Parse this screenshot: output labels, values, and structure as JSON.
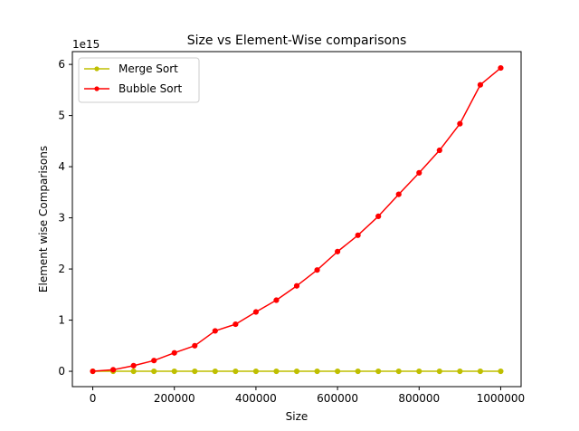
{
  "chart_data": {
    "type": "line",
    "title": "Size vs Element-Wise comparisons",
    "xlabel": "Size",
    "ylabel": "Element wise Comparisons",
    "y_offset_label": "1e15",
    "y_scale_factor": 1000000000000000.0,
    "xlim": [
      -50000,
      1050000
    ],
    "ylim": [
      -0.3,
      6.25
    ],
    "x_ticks": [
      0,
      200000,
      400000,
      600000,
      800000,
      1000000
    ],
    "x_tick_labels": [
      "0",
      "200000",
      "400000",
      "600000",
      "800000",
      "1000000"
    ],
    "y_ticks": [
      0,
      1,
      2,
      3,
      4,
      5,
      6
    ],
    "y_tick_labels": [
      "0",
      "1",
      "2",
      "3",
      "4",
      "5",
      "6"
    ],
    "grid": false,
    "legend_position": "upper-left",
    "x": [
      1,
      50000,
      100000,
      150000,
      200000,
      250000,
      300000,
      350000,
      400000,
      450000,
      500000,
      550000,
      600000,
      650000,
      700000,
      750000,
      800000,
      850000,
      900000,
      950000,
      1000000
    ],
    "series": [
      {
        "name": "Merge Sort",
        "color": "#bfbf00",
        "marker": "circle",
        "values": [
          0,
          0,
          0,
          0,
          0,
          0,
          0,
          0,
          0,
          0,
          0,
          0,
          0,
          0,
          0,
          0,
          0,
          0,
          0,
          0,
          0
        ]
      },
      {
        "name": "Bubble Sort",
        "color": "#ff0000",
        "marker": "circle",
        "values": [
          0,
          0.03,
          0.11,
          0.21,
          0.36,
          0.5,
          0.79,
          0.92,
          1.16,
          1.39,
          1.67,
          1.98,
          2.34,
          2.66,
          3.03,
          3.46,
          3.88,
          4.32,
          4.84,
          5.6,
          5.93
        ]
      }
    ]
  }
}
